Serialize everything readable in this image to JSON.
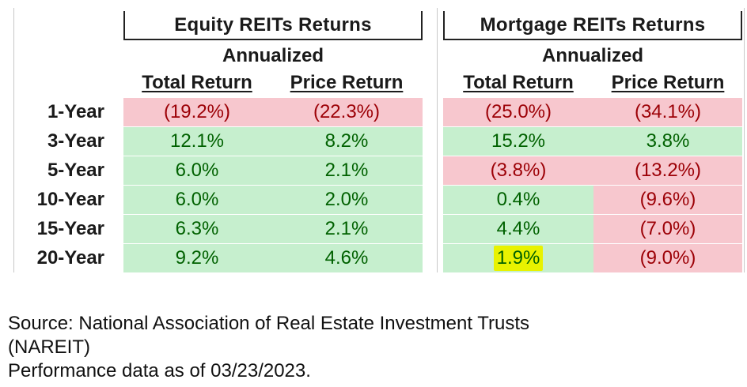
{
  "groups": {
    "equity": {
      "title": "Equity REITs Returns",
      "subtitle": "Annualized",
      "col_total": "Total Return",
      "col_price": "Price Return"
    },
    "mortgage": {
      "title": "Mortgage REITs Returns",
      "subtitle": "Annualized",
      "col_total": "Total Return",
      "col_price": "Price Return"
    }
  },
  "rows": [
    {
      "label": "1-Year",
      "eq_total": "(19.2%)",
      "eq_price": "(22.3%)",
      "mo_total": "(25.0%)",
      "mo_price": "(34.1%)"
    },
    {
      "label": "3-Year",
      "eq_total": "12.1%",
      "eq_price": "8.2%",
      "mo_total": "15.2%",
      "mo_price": "3.8%"
    },
    {
      "label": "5-Year",
      "eq_total": "6.0%",
      "eq_price": "2.1%",
      "mo_total": "(3.8%)",
      "mo_price": "(13.2%)"
    },
    {
      "label": "10-Year",
      "eq_total": "6.0%",
      "eq_price": "2.0%",
      "mo_total": "0.4%",
      "mo_price": "(9.6%)"
    },
    {
      "label": "15-Year",
      "eq_total": "6.3%",
      "eq_price": "2.1%",
      "mo_total": "4.4%",
      "mo_price": "(7.0%)"
    },
    {
      "label": "20-Year",
      "eq_total": "9.2%",
      "eq_price": "4.6%",
      "mo_total": "1.9%",
      "mo_price": "(9.0%)"
    }
  ],
  "colors": {
    "negative_fill": "#f7c7ce",
    "negative_text": "#9c0006",
    "positive_fill": "#c6efce",
    "positive_text": "#006100",
    "highlight": "#e8f200"
  },
  "footer": {
    "source_line1": "Source: National Association of Real Estate Investment Trusts",
    "source_line2": "(NAREIT)",
    "asof": "Performance data as of 03/23/2023."
  }
}
